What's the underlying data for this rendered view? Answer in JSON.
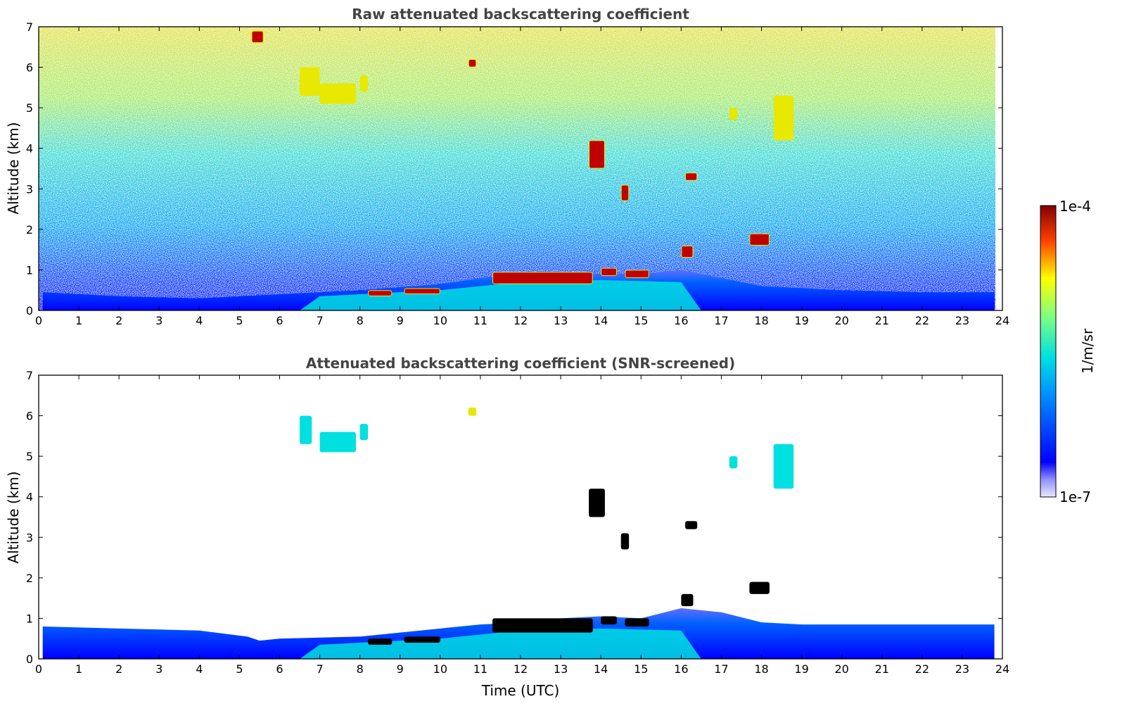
{
  "chart_data": [
    {
      "type": "heatmap",
      "title": "Raw attenuated backscattering coefficient",
      "xlabel": "",
      "ylabel": "Altitude (km)",
      "xlim": [
        0,
        24
      ],
      "ylim": [
        0,
        7
      ],
      "xticks": [
        "0",
        "1",
        "2",
        "3",
        "4",
        "5",
        "6",
        "7",
        "8",
        "9",
        "10",
        "11",
        "12",
        "13",
        "14",
        "15",
        "16",
        "17",
        "18",
        "19",
        "20",
        "21",
        "22",
        "23",
        "24"
      ],
      "yticks": [
        "0",
        "1",
        "2",
        "3",
        "4",
        "5",
        "6",
        "7"
      ],
      "boundary_layer_top_km": [
        [
          0.1,
          0.45
        ],
        [
          2,
          0.35
        ],
        [
          4,
          0.3
        ],
        [
          6,
          0.4
        ],
        [
          8,
          0.5
        ],
        [
          10,
          0.65
        ],
        [
          11,
          0.8
        ],
        [
          12,
          0.9
        ],
        [
          13,
          0.95
        ],
        [
          14,
          0.9
        ],
        [
          15,
          0.9
        ],
        [
          16,
          1.0
        ],
        [
          17,
          0.8
        ],
        [
          18,
          0.6
        ],
        [
          20,
          0.5
        ],
        [
          22,
          0.45
        ],
        [
          23.8,
          0.45
        ]
      ],
      "cloud_features": [
        {
          "t_start": 8.2,
          "t_end": 8.8,
          "alt_bottom": 0.35,
          "alt_top": 0.5,
          "level": "high"
        },
        {
          "t_start": 9.1,
          "t_end": 10.0,
          "alt_bottom": 0.4,
          "alt_top": 0.55,
          "level": "high"
        },
        {
          "t_start": 11.3,
          "t_end": 13.8,
          "alt_bottom": 0.65,
          "alt_top": 0.95,
          "level": "high"
        },
        {
          "t_start": 14.0,
          "t_end": 14.4,
          "alt_bottom": 0.85,
          "alt_top": 1.05,
          "level": "high"
        },
        {
          "t_start": 14.6,
          "t_end": 15.2,
          "alt_bottom": 0.8,
          "alt_top": 1.0,
          "level": "high"
        },
        {
          "t_start": 16.0,
          "t_end": 16.3,
          "alt_bottom": 1.3,
          "alt_top": 1.6,
          "level": "high"
        },
        {
          "t_start": 17.7,
          "t_end": 18.2,
          "alt_bottom": 1.6,
          "alt_top": 1.9,
          "level": "high"
        },
        {
          "t_start": 13.7,
          "t_end": 14.1,
          "alt_bottom": 3.5,
          "alt_top": 4.2,
          "level": "high"
        },
        {
          "t_start": 14.5,
          "t_end": 14.7,
          "alt_bottom": 2.7,
          "alt_top": 3.1,
          "level": "high"
        },
        {
          "t_start": 16.1,
          "t_end": 16.4,
          "alt_bottom": 3.2,
          "alt_top": 3.4,
          "level": "high"
        },
        {
          "t_start": 7.0,
          "t_end": 7.9,
          "alt_bottom": 5.1,
          "alt_top": 5.6,
          "level": "mid"
        },
        {
          "t_start": 6.5,
          "t_end": 7.0,
          "alt_bottom": 5.3,
          "alt_top": 6.0,
          "level": "mid"
        },
        {
          "t_start": 8.0,
          "t_end": 8.2,
          "alt_bottom": 5.4,
          "alt_top": 5.8,
          "level": "mid"
        },
        {
          "t_start": 17.2,
          "t_end": 17.4,
          "alt_bottom": 4.7,
          "alt_top": 5.0,
          "level": "mid"
        },
        {
          "t_start": 18.3,
          "t_end": 18.8,
          "alt_bottom": 4.2,
          "alt_top": 5.3,
          "level": "mid"
        },
        {
          "t_start": 5.3,
          "t_end": 5.6,
          "alt_bottom": 6.6,
          "alt_top": 6.9,
          "level": "high"
        },
        {
          "t_start": 10.7,
          "t_end": 10.9,
          "alt_bottom": 6.0,
          "alt_top": 6.2,
          "level": "high"
        }
      ]
    },
    {
      "type": "heatmap",
      "title": "Attenuated backscattering coefficient (SNR-screened)",
      "xlabel": "Time (UTC)",
      "ylabel": "Altitude (km)",
      "xlim": [
        0,
        24
      ],
      "ylim": [
        0,
        7
      ],
      "xticks": [
        "0",
        "1",
        "2",
        "3",
        "4",
        "5",
        "6",
        "7",
        "8",
        "9",
        "10",
        "11",
        "12",
        "13",
        "14",
        "15",
        "16",
        "17",
        "18",
        "19",
        "20",
        "21",
        "22",
        "23",
        "24"
      ],
      "yticks": [
        "0",
        "1",
        "2",
        "3",
        "4",
        "5",
        "6",
        "7"
      ],
      "boundary_layer_top_km": [
        [
          0.1,
          0.8
        ],
        [
          2,
          0.75
        ],
        [
          4,
          0.7
        ],
        [
          5.2,
          0.55
        ],
        [
          5.5,
          0.45
        ],
        [
          6,
          0.5
        ],
        [
          8,
          0.55
        ],
        [
          10,
          0.75
        ],
        [
          11,
          0.85
        ],
        [
          12,
          0.9
        ],
        [
          13,
          1.0
        ],
        [
          14,
          1.05
        ],
        [
          15,
          1.0
        ],
        [
          16,
          1.25
        ],
        [
          17,
          1.15
        ],
        [
          18,
          0.9
        ],
        [
          19,
          0.85
        ],
        [
          21,
          0.85
        ],
        [
          23.8,
          0.85
        ]
      ],
      "cloud_features": [
        {
          "t_start": 8.2,
          "t_end": 8.8,
          "alt_bottom": 0.35,
          "alt_top": 0.5,
          "level": "black"
        },
        {
          "t_start": 9.1,
          "t_end": 10.0,
          "alt_bottom": 0.4,
          "alt_top": 0.55,
          "level": "black"
        },
        {
          "t_start": 11.3,
          "t_end": 13.8,
          "alt_bottom": 0.65,
          "alt_top": 1.0,
          "level": "black"
        },
        {
          "t_start": 14.0,
          "t_end": 14.4,
          "alt_bottom": 0.85,
          "alt_top": 1.05,
          "level": "black"
        },
        {
          "t_start": 14.6,
          "t_end": 15.2,
          "alt_bottom": 0.8,
          "alt_top": 1.0,
          "level": "black"
        },
        {
          "t_start": 16.0,
          "t_end": 16.3,
          "alt_bottom": 1.3,
          "alt_top": 1.6,
          "level": "black"
        },
        {
          "t_start": 17.7,
          "t_end": 18.2,
          "alt_bottom": 1.6,
          "alt_top": 1.9,
          "level": "black"
        },
        {
          "t_start": 13.7,
          "t_end": 14.1,
          "alt_bottom": 3.5,
          "alt_top": 4.2,
          "level": "black"
        },
        {
          "t_start": 14.5,
          "t_end": 14.7,
          "alt_bottom": 2.7,
          "alt_top": 3.1,
          "level": "black"
        },
        {
          "t_start": 16.1,
          "t_end": 16.4,
          "alt_bottom": 3.2,
          "alt_top": 3.4,
          "level": "black"
        },
        {
          "t_start": 7.0,
          "t_end": 7.9,
          "alt_bottom": 5.1,
          "alt_top": 5.6,
          "level": "mid"
        },
        {
          "t_start": 6.5,
          "t_end": 6.8,
          "alt_bottom": 5.3,
          "alt_top": 6.0,
          "level": "mid"
        },
        {
          "t_start": 8.0,
          "t_end": 8.2,
          "alt_bottom": 5.4,
          "alt_top": 5.8,
          "level": "mid"
        },
        {
          "t_start": 17.2,
          "t_end": 17.4,
          "alt_bottom": 4.7,
          "alt_top": 5.0,
          "level": "mid"
        },
        {
          "t_start": 18.3,
          "t_end": 18.8,
          "alt_bottom": 4.2,
          "alt_top": 5.3,
          "level": "mid"
        },
        {
          "t_start": 10.7,
          "t_end": 10.9,
          "alt_bottom": 6.0,
          "alt_top": 6.2,
          "level": "high"
        }
      ]
    }
  ],
  "colorbar": {
    "label": "1/m/sr",
    "max_label": "1e-4",
    "min_label": "1e-7",
    "scale": "log",
    "colormap": "jet"
  },
  "colors": {
    "low": "#0000ff",
    "mid": "#00e0e0",
    "high": "#e8e800",
    "max": "#c00000",
    "black": "#000000"
  }
}
